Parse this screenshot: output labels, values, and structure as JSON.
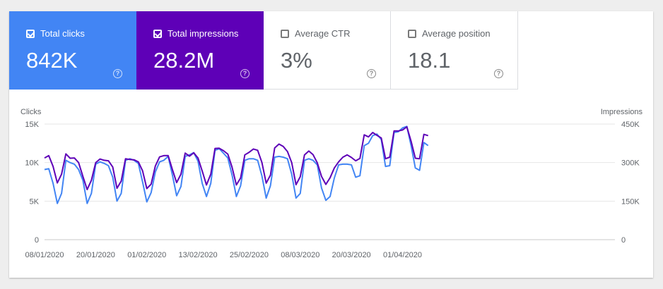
{
  "metrics": [
    {
      "label": "Total clicks",
      "value": "842K",
      "checked": true,
      "color": "#4285f4"
    },
    {
      "label": "Total impressions",
      "value": "28.2M",
      "checked": true,
      "color": "#5e00b7"
    },
    {
      "label": "Average CTR",
      "value": "3%",
      "checked": false
    },
    {
      "label": "Average position",
      "value": "18.1",
      "checked": false
    }
  ],
  "help_glyph": "?",
  "chart_data": {
    "type": "line",
    "x_start": "08/01/2020",
    "xtick_labels": [
      "08/01/2020",
      "20/01/2020",
      "01/02/2020",
      "13/02/2020",
      "25/02/2020",
      "08/03/2020",
      "20/03/2020",
      "01/04/2020"
    ],
    "y_left_label": "Clicks",
    "y_right_label": "Impressions",
    "y_left_ticks": [
      "0",
      "5K",
      "10K",
      "15K"
    ],
    "y_right_ticks": [
      "0",
      "150K",
      "300K",
      "450K"
    ],
    "y_left_range": [
      0,
      15000
    ],
    "y_right_range": [
      0,
      450000
    ],
    "grid": true,
    "series": [
      {
        "name": "Clicks",
        "axis": "left",
        "color": "#4285f4",
        "values": [
          9100,
          9200,
          7300,
          4700,
          6000,
          10300,
          10000,
          9800,
          9100,
          7700,
          4700,
          6000,
          9800,
          10100,
          9900,
          9600,
          8100,
          5000,
          6000,
          10300,
          10500,
          10300,
          9900,
          7500,
          4900,
          6100,
          8800,
          10100,
          10300,
          10800,
          8400,
          5700,
          6900,
          10800,
          11000,
          11300,
          10200,
          7300,
          5600,
          7300,
          11600,
          11800,
          11200,
          10600,
          8400,
          5600,
          7000,
          10300,
          10500,
          10500,
          10300,
          8300,
          5400,
          7000,
          10700,
          10800,
          10700,
          10500,
          8500,
          5400,
          6000,
          10300,
          10500,
          10300,
          9700,
          6700,
          5100,
          5600,
          8000,
          9700,
          9800,
          9800,
          9700,
          8100,
          8300,
          12200,
          12500,
          13500,
          13700,
          13000,
          9500,
          9600,
          13900,
          14000,
          14500,
          14700,
          12200,
          9300,
          9000,
          12600,
          12200
        ]
      },
      {
        "name": "Impressions",
        "axis": "right",
        "color": "#5e00b7",
        "values": [
          318000,
          327000,
          285000,
          221000,
          255000,
          334000,
          317000,
          318000,
          300000,
          246000,
          195000,
          231000,
          300000,
          314000,
          309000,
          307000,
          283000,
          200000,
          228000,
          315000,
          312000,
          311000,
          303000,
          268000,
          199000,
          216000,
          287000,
          322000,
          327000,
          327000,
          273000,
          222000,
          255000,
          337000,
          325000,
          338000,
          318000,
          267000,
          213000,
          255000,
          355000,
          356000,
          346000,
          333000,
          282000,
          213000,
          240000,
          330000,
          340000,
          353000,
          348000,
          301000,
          220000,
          251000,
          357000,
          372000,
          363000,
          343000,
          300000,
          214000,
          245000,
          330000,
          345000,
          331000,
          299000,
          246000,
          215000,
          241000,
          279000,
          303000,
          321000,
          330000,
          320000,
          307000,
          316000,
          408000,
          400000,
          417000,
          406000,
          396000,
          315000,
          321000,
          423000,
          423000,
          427000,
          439000,
          383000,
          317000,
          315000,
          410000,
          405000
        ]
      }
    ]
  }
}
